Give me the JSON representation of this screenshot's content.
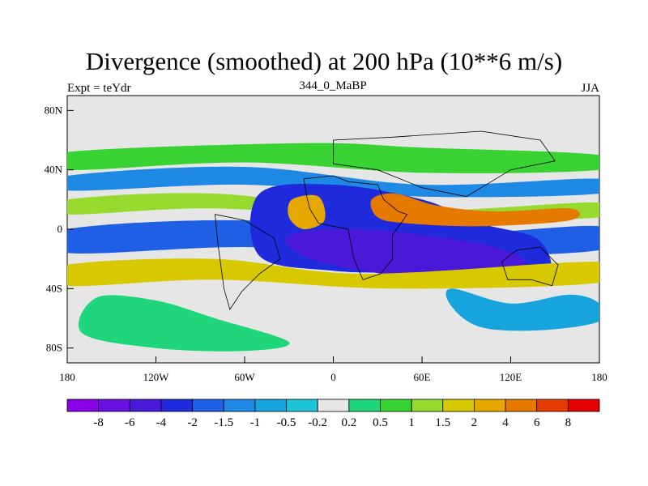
{
  "chart_data": {
    "type": "contour-map",
    "title": "Divergence (smoothed) at 200 hPa (10**6 m/s)",
    "subtitle_left": "Expt = teYdr",
    "subtitle_center": "344_0_MaBP",
    "subtitle_right": "JJA",
    "x_ticks": [
      {
        "value": -180,
        "label": "180"
      },
      {
        "value": -120,
        "label": "120W"
      },
      {
        "value": -60,
        "label": "60W"
      },
      {
        "value": 0,
        "label": "0"
      },
      {
        "value": 60,
        "label": "60E"
      },
      {
        "value": 120,
        "label": "120E"
      },
      {
        "value": 180,
        "label": "180"
      }
    ],
    "y_ticks": [
      {
        "value": 80,
        "label": "80N"
      },
      {
        "value": 40,
        "label": "40N"
      },
      {
        "value": 0,
        "label": "0"
      },
      {
        "value": -40,
        "label": "40S"
      },
      {
        "value": -80,
        "label": "80S"
      }
    ],
    "xlim": [
      -180,
      180
    ],
    "ylim": [
      -90,
      90
    ],
    "colorbar": {
      "levels": [
        "-8",
        "-6",
        "-4",
        "-2",
        "-1.5",
        "-1",
        "-0.5",
        "-0.2",
        "0.2",
        "0.5",
        "1",
        "1.5",
        "2",
        "4",
        "6",
        "8"
      ],
      "colors": [
        "#8a00e8",
        "#6a10e0",
        "#4a18d8",
        "#1e2adb",
        "#1f5fe6",
        "#1e88e5",
        "#17a4dc",
        "#1fc3d8",
        "#e6e6e6",
        "#1fd67a",
        "#38d332",
        "#97d92c",
        "#d8c800",
        "#e6a800",
        "#e67a00",
        "#e63c00",
        "#e60000"
      ]
    },
    "regions": [
      {
        "level": "0.5",
        "points": [
          [
            -180,
            52
          ],
          [
            -20,
            58
          ],
          [
            60,
            55
          ],
          [
            180,
            50
          ],
          [
            180,
            40
          ],
          [
            60,
            38
          ],
          [
            -60,
            45
          ],
          [
            -180,
            40
          ]
        ]
      },
      {
        "level": "-1",
        "points": [
          [
            -180,
            36
          ],
          [
            -60,
            42
          ],
          [
            60,
            30
          ],
          [
            180,
            34
          ],
          [
            180,
            24
          ],
          [
            60,
            22
          ],
          [
            -60,
            30
          ],
          [
            -180,
            26
          ]
        ]
      },
      {
        "level": "1",
        "points": [
          [
            -180,
            20
          ],
          [
            -80,
            24
          ],
          [
            40,
            12
          ],
          [
            180,
            18
          ],
          [
            180,
            8
          ],
          [
            60,
            6
          ],
          [
            -80,
            14
          ],
          [
            -180,
            10
          ]
        ]
      },
      {
        "level": "-1.5",
        "points": [
          [
            -180,
            0
          ],
          [
            -60,
            6
          ],
          [
            60,
            -4
          ],
          [
            180,
            2
          ],
          [
            180,
            -14
          ],
          [
            60,
            -18
          ],
          [
            -60,
            -12
          ],
          [
            -180,
            -16
          ]
        ]
      },
      {
        "level": "-2",
        "points": [
          [
            -50,
            24
          ],
          [
            0,
            30
          ],
          [
            60,
            20
          ],
          [
            100,
            4
          ],
          [
            140,
            -8
          ],
          [
            140,
            -36
          ],
          [
            60,
            -30
          ],
          [
            0,
            -28
          ],
          [
            -50,
            -18
          ]
        ]
      },
      {
        "level": "-4",
        "points": [
          [
            -30,
            -4
          ],
          [
            20,
            0
          ],
          [
            100,
            -10
          ],
          [
            130,
            -24
          ],
          [
            80,
            -34
          ],
          [
            20,
            -28
          ],
          [
            -20,
            -18
          ]
        ]
      },
      {
        "level": "1.5",
        "points": [
          [
            -180,
            -24
          ],
          [
            -80,
            -20
          ],
          [
            20,
            -30
          ],
          [
            180,
            -22
          ],
          [
            180,
            -36
          ],
          [
            40,
            -40
          ],
          [
            -80,
            -34
          ],
          [
            -180,
            -38
          ]
        ]
      },
      {
        "level": "2",
        "points": [
          [
            -28,
            20
          ],
          [
            -10,
            22
          ],
          [
            -6,
            6
          ],
          [
            -20,
            0
          ],
          [
            -30,
            8
          ]
        ]
      },
      {
        "level": "4",
        "points": [
          [
            26,
            20
          ],
          [
            42,
            24
          ],
          [
            70,
            16
          ],
          [
            110,
            12
          ],
          [
            160,
            14
          ],
          [
            160,
            6
          ],
          [
            100,
            2
          ],
          [
            50,
            4
          ],
          [
            30,
            8
          ]
        ]
      },
      {
        "level": "0.2",
        "points": [
          [
            -160,
            -46
          ],
          [
            -120,
            -48
          ],
          [
            -80,
            -60
          ],
          [
            -30,
            -76
          ],
          [
            -60,
            -82
          ],
          [
            -120,
            -80
          ],
          [
            -170,
            -70
          ]
        ]
      },
      {
        "level": "-0.5",
        "points": [
          [
            80,
            -40
          ],
          [
            120,
            -50
          ],
          [
            160,
            -44
          ],
          [
            180,
            -50
          ],
          [
            180,
            -62
          ],
          [
            140,
            -68
          ],
          [
            100,
            -66
          ],
          [
            80,
            -52
          ]
        ]
      }
    ]
  }
}
